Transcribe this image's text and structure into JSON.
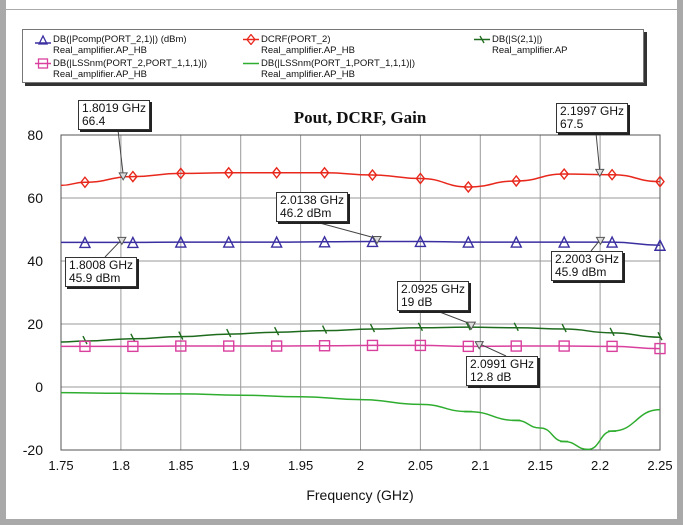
{
  "chart_data": {
    "type": "line",
    "title": "Pout, DCRF, Gain",
    "xlabel": "Frequency (GHz)",
    "ylabel": "",
    "xlim": [
      1.75,
      2.25
    ],
    "ylim": [
      -20,
      80
    ],
    "grid": true,
    "legend_placement": "top",
    "xticks": [
      "1.75",
      "1.8",
      "1.85",
      "1.9",
      "1.95",
      "2",
      "2.05",
      "2.1",
      "2.15",
      "2.2",
      "2.25"
    ],
    "yticks": [
      "80",
      "60",
      "40",
      "20",
      "0",
      "-20"
    ],
    "series": [
      {
        "name": "DB(|Pcomp(PORT_2,1)|) (dBm)",
        "source": "Real_amplifier.AP_HB",
        "color": "#3a2fa0",
        "marker": "triangle",
        "x": [
          1.75,
          1.77,
          1.81,
          1.85,
          1.89,
          1.93,
          1.97,
          2.01,
          2.05,
          2.09,
          2.13,
          2.17,
          2.21,
          2.25
        ],
        "y": [
          45.9,
          45.9,
          45.9,
          46,
          46,
          46,
          46.1,
          46.2,
          46.2,
          46,
          46,
          46,
          46,
          45
        ]
      },
      {
        "name": "DCRF(PORT_2)",
        "source": "Real_amplifier.AP_HB",
        "color": "#e8281c",
        "marker": "diamond",
        "x": [
          1.75,
          1.77,
          1.81,
          1.85,
          1.89,
          1.93,
          1.97,
          2.01,
          2.05,
          2.09,
          2.13,
          2.17,
          2.21,
          2.25
        ],
        "y": [
          64,
          65,
          66.8,
          67.8,
          68,
          68,
          68,
          67.3,
          66.2,
          63.5,
          65.4,
          67.6,
          67.4,
          65.2
        ]
      },
      {
        "name": "DB(|S(2,1)|)",
        "source": "Real_amplifier.AP",
        "color": "#1e6b1e",
        "marker": "tick",
        "x": [
          1.75,
          1.77,
          1.81,
          1.85,
          1.89,
          1.93,
          1.97,
          2.01,
          2.05,
          2.09,
          2.13,
          2.17,
          2.21,
          2.25
        ],
        "y": [
          14.3,
          14.6,
          15.3,
          16,
          16.8,
          17.4,
          17.9,
          18.4,
          18.8,
          19,
          18.8,
          18.4,
          17.2,
          15.8
        ]
      },
      {
        "name": "DB(|LSSnm(PORT_2,PORT_1,1,1)|)",
        "source": "Real_amplifier.AP_HB",
        "color": "#d9409e",
        "marker": "square",
        "x": [
          1.75,
          1.77,
          1.81,
          1.85,
          1.89,
          1.93,
          1.97,
          2.01,
          2.05,
          2.09,
          2.13,
          2.17,
          2.21,
          2.25
        ],
        "y": [
          12.9,
          12.9,
          12.9,
          13,
          13,
          13,
          13.1,
          13.2,
          13.2,
          12.9,
          13,
          13,
          12.9,
          12.2
        ]
      },
      {
        "name": "DB(|LSSnm(PORT_1,PORT_1,1,1)|)",
        "source": "Real_amplifier.AP_HB",
        "color": "#2fad2f",
        "marker": "smalltick",
        "x": [
          1.75,
          1.8,
          1.85,
          1.9,
          1.95,
          2.0,
          2.05,
          2.09,
          2.13,
          2.15,
          2.17,
          2.19,
          2.21,
          2.25
        ],
        "y": [
          -1.8,
          -2,
          -2.2,
          -2.6,
          -3.1,
          -4,
          -5.5,
          -7.8,
          -10.6,
          -13,
          -17.3,
          -19.8,
          -14,
          -7.2
        ]
      }
    ],
    "markers": [
      {
        "freq": "1.8019 GHz",
        "value": "66.4",
        "x": 1.8019,
        "y": 66.4
      },
      {
        "freq": "2.1997 GHz",
        "value": "67.5",
        "x": 2.1997,
        "y": 67.5
      },
      {
        "freq": "2.0138 GHz",
        "value": "46.2 dBm",
        "x": 2.0138,
        "y": 46.2
      },
      {
        "freq": "1.8008 GHz",
        "value": "45.9 dBm",
        "x": 1.8008,
        "y": 45.9
      },
      {
        "freq": "2.2003 GHz",
        "value": "45.9 dBm",
        "x": 2.2003,
        "y": 45.9
      },
      {
        "freq": "2.0925 GHz",
        "value": "19 dB",
        "x": 2.0925,
        "y": 19
      },
      {
        "freq": "2.0991 GHz",
        "value": "12.8 dB",
        "x": 2.0991,
        "y": 12.8
      }
    ]
  }
}
